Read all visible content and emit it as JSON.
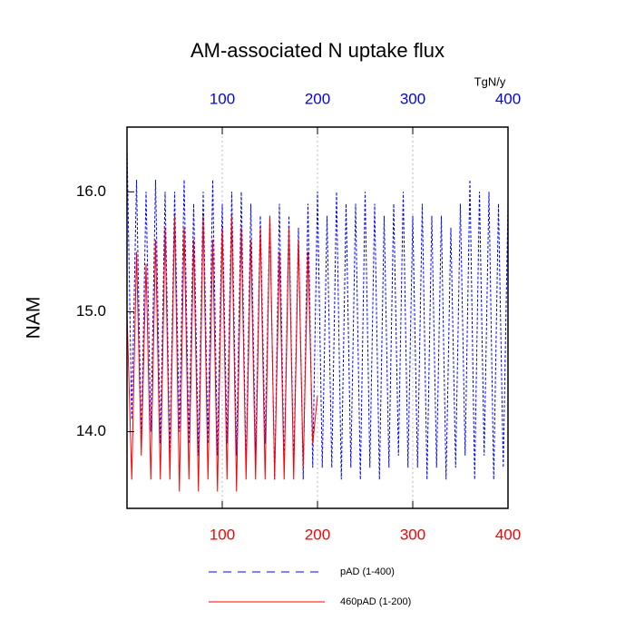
{
  "chart_data": {
    "type": "line",
    "title": "AM-associated N uptake flux",
    "ylabel": "NAM",
    "x2label": "TgN/y",
    "xlim": [
      0,
      400
    ],
    "xticks": [
      100,
      200,
      300,
      400
    ],
    "xtick_color": "red",
    "x2lim": [
      0,
      400
    ],
    "x2ticks": [
      100,
      200,
      300,
      400
    ],
    "x2tick_color": "blue",
    "ylim": [
      13.36,
      16.54
    ],
    "yticks": [
      {
        "value": 14,
        "label": "14.0"
      },
      {
        "value": 15,
        "label": "15.0"
      },
      {
        "value": 16,
        "label": "16.0"
      }
    ],
    "grid": true,
    "legend": "bottom",
    "series": [
      {
        "name": "pAD (1-400)",
        "color": "blue",
        "dash": true,
        "x": [
          0,
          5,
          10,
          15,
          20,
          25,
          30,
          35,
          40,
          45,
          50,
          55,
          60,
          65,
          70,
          75,
          80,
          85,
          90,
          95,
          100,
          105,
          110,
          115,
          120,
          125,
          130,
          135,
          140,
          145,
          150,
          155,
          160,
          165,
          170,
          175,
          180,
          185,
          190,
          195,
          200,
          205,
          210,
          215,
          220,
          225,
          230,
          235,
          240,
          245,
          250,
          255,
          260,
          265,
          270,
          275,
          280,
          285,
          290,
          295,
          300,
          305,
          310,
          315,
          320,
          325,
          330,
          335,
          340,
          345,
          350,
          355,
          360,
          365,
          370,
          375,
          380,
          385,
          390,
          395,
          400
        ],
        "values": [
          16.4,
          14.1,
          16.1,
          13.9,
          16.0,
          14.0,
          16.1,
          13.9,
          16.0,
          13.8,
          16.0,
          14.0,
          16.1,
          13.9,
          15.9,
          13.8,
          16.0,
          13.9,
          16.1,
          13.8,
          15.9,
          13.9,
          16.0,
          13.8,
          16.0,
          13.7,
          15.9,
          13.8,
          15.8,
          13.9,
          15.8,
          13.6,
          15.9,
          13.7,
          15.8,
          13.7,
          15.7,
          13.6,
          15.9,
          13.7,
          16.0,
          13.7,
          15.8,
          13.7,
          16.0,
          13.6,
          15.9,
          13.7,
          15.9,
          13.6,
          16.0,
          13.7,
          15.9,
          13.6,
          15.8,
          13.7,
          15.9,
          13.8,
          16.0,
          13.7,
          15.8,
          13.7,
          15.9,
          13.6,
          15.8,
          13.7,
          15.8,
          13.6,
          15.7,
          13.7,
          15.9,
          13.8,
          16.1,
          13.6,
          16.0,
          13.8,
          16.0,
          13.6,
          15.9,
          13.7,
          15.9
        ]
      },
      {
        "name": "460pAD (1-200)",
        "color": "red",
        "dash": false,
        "x": [
          0,
          5,
          10,
          15,
          20,
          25,
          30,
          35,
          40,
          45,
          50,
          55,
          60,
          65,
          70,
          75,
          80,
          85,
          90,
          95,
          100,
          105,
          110,
          115,
          120,
          125,
          130,
          135,
          140,
          145,
          150,
          155,
          160,
          165,
          170,
          175,
          180,
          185,
          190,
          195,
          200
        ],
        "values": [
          15.0,
          13.6,
          15.5,
          13.8,
          15.4,
          13.6,
          15.6,
          13.6,
          15.7,
          13.6,
          15.8,
          13.5,
          15.7,
          13.6,
          15.6,
          13.5,
          15.8,
          13.6,
          15.6,
          13.5,
          15.7,
          13.6,
          15.8,
          13.5,
          15.7,
          13.6,
          15.6,
          13.6,
          15.7,
          13.6,
          15.8,
          13.6,
          15.5,
          13.6,
          15.7,
          13.6,
          15.6,
          13.7,
          15.5,
          13.9,
          14.3
        ]
      }
    ]
  }
}
